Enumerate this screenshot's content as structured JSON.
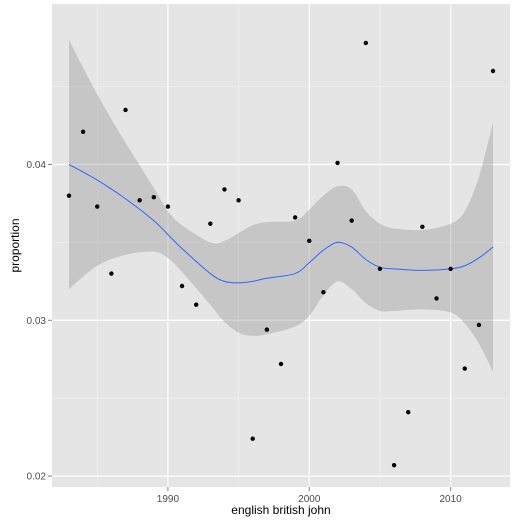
{
  "chart_data": {
    "type": "scatter",
    "title": "",
    "xlabel": "english british john",
    "ylabel": "proportion",
    "xlim": [
      1981.8,
      2014.2
    ],
    "ylim": [
      0.0193,
      0.0503
    ],
    "x_ticks": [
      1990,
      2000,
      2010
    ],
    "x_tick_labels": [
      "1990",
      "2000",
      "2010"
    ],
    "y_ticks": [
      0.02,
      0.03,
      0.04
    ],
    "y_tick_labels": [
      "0.02",
      "0.03",
      "0.04"
    ],
    "grid": true,
    "legend": "none",
    "points": {
      "x": [
        1983,
        1984,
        1985,
        1986,
        1987,
        1988,
        1989,
        1990,
        1991,
        1992,
        1993,
        1994,
        1995,
        1996,
        1997,
        1998,
        1999,
        2000,
        2001,
        2002,
        2003,
        2004,
        2005,
        2006,
        2007,
        2008,
        2009,
        2010,
        2011,
        2012,
        2013
      ],
      "y": [
        0.038,
        0.0421,
        0.0373,
        0.033,
        0.0435,
        0.0377,
        0.0379,
        0.0373,
        0.0322,
        0.031,
        0.0362,
        0.0384,
        0.0377,
        0.0224,
        0.0294,
        0.0272,
        0.0366,
        0.0351,
        0.0318,
        0.0401,
        0.0364,
        0.0478,
        0.0333,
        0.0207,
        0.0241,
        0.036,
        0.0314,
        0.0333,
        0.0269,
        0.0297,
        0.046
      ]
    },
    "smooth": {
      "x": [
        1983,
        1985,
        1987,
        1989,
        1990,
        1991,
        1993,
        1994,
        1995,
        1996,
        1997,
        1999,
        2000,
        2001,
        2002,
        2003,
        2004,
        2005,
        2006,
        2008,
        2010,
        2011,
        2012,
        2013
      ],
      "y": [
        0.04,
        0.039,
        0.0378,
        0.0364,
        0.0355,
        0.0346,
        0.033,
        0.0325,
        0.0324,
        0.0325,
        0.0327,
        0.033,
        0.0337,
        0.0345,
        0.035,
        0.0347,
        0.0339,
        0.0334,
        0.0333,
        0.0332,
        0.0333,
        0.0335,
        0.034,
        0.0347
      ],
      "lower": [
        0.032,
        0.0335,
        0.0342,
        0.0344,
        0.034,
        0.0331,
        0.031,
        0.0299,
        0.0292,
        0.029,
        0.0291,
        0.0296,
        0.0303,
        0.0316,
        0.0325,
        0.032,
        0.0311,
        0.0306,
        0.0306,
        0.0307,
        0.0305,
        0.0298,
        0.0285,
        0.0267
      ],
      "upper": [
        0.048,
        0.0445,
        0.0414,
        0.0385,
        0.037,
        0.0361,
        0.035,
        0.0351,
        0.0356,
        0.0361,
        0.0363,
        0.0364,
        0.0371,
        0.038,
        0.0386,
        0.0384,
        0.037,
        0.0362,
        0.0359,
        0.0358,
        0.0362,
        0.037,
        0.0392,
        0.0427
      ]
    },
    "colors": {
      "panel": "#e5e5e5",
      "grid_major": "#ffffff",
      "grid_minor": "#f2f2f2",
      "ribbon": "#999999",
      "line": "#3366ff",
      "point": "#000000"
    }
  }
}
